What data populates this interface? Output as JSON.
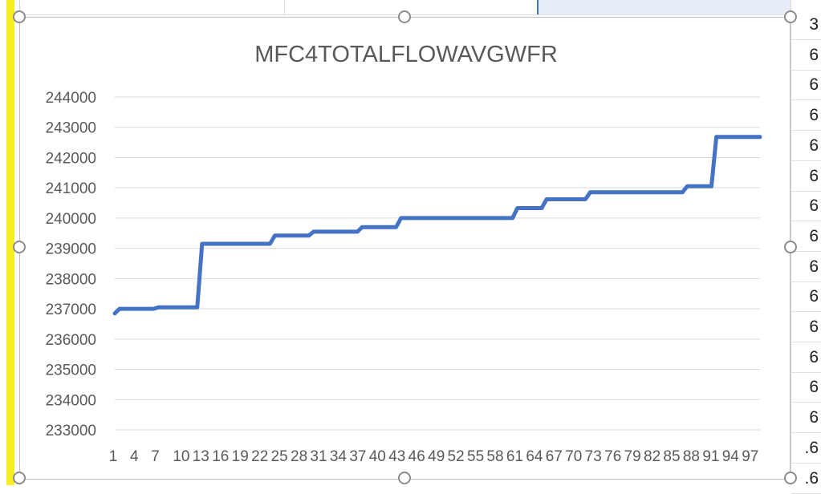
{
  "sheet": {
    "right_cells": [
      "3",
      "6",
      "6",
      "6",
      "6",
      "6",
      "6",
      "6",
      "6",
      "6",
      "6",
      "6",
      "6",
      "6",
      ".6",
      ".6"
    ]
  },
  "chart_data": {
    "type": "line",
    "title": "MFC4TOTALFLOWAVGWFR",
    "xlabel": "",
    "ylabel": "",
    "ylim": [
      233000,
      244000
    ],
    "y_ticks": [
      244000,
      243000,
      242000,
      241000,
      240000,
      239000,
      238000,
      237000,
      236000,
      235000,
      234000,
      233000
    ],
    "x_tick_labels": [
      "1",
      "4",
      "7",
      "10",
      "13",
      "16",
      "19",
      "22",
      "25",
      "28",
      "31",
      "34",
      "37",
      "40",
      "43",
      "46",
      "49",
      "52",
      "55",
      "58",
      "61",
      "64",
      "67",
      "70",
      "73",
      "76",
      "79",
      "82",
      "85",
      "88",
      "91",
      "94",
      "97"
    ],
    "grid": true,
    "legend": "none",
    "line_color": "#4472c4",
    "series": [
      {
        "values": [
          236850,
          237000,
          237000,
          237000,
          237000,
          237000,
          237000,
          237000,
          237000,
          237050,
          237050,
          237050,
          237050,
          237050,
          237050,
          237050,
          237050,
          237050,
          239150,
          239150,
          239150,
          239150,
          239150,
          239150,
          239150,
          239150,
          239150,
          239150,
          239150,
          239150,
          239150,
          239150,
          239150,
          239420,
          239420,
          239420,
          239420,
          239420,
          239420,
          239420,
          239420,
          239550,
          239550,
          239550,
          239550,
          239550,
          239550,
          239550,
          239550,
          239550,
          239550,
          239700,
          239700,
          239700,
          239700,
          239700,
          239700,
          239700,
          239700,
          240000,
          240000,
          240000,
          240000,
          240000,
          240000,
          240000,
          240000,
          240000,
          240000,
          240000,
          240000,
          240000,
          240000,
          240000,
          240000,
          240000,
          240000,
          240000,
          240000,
          240000,
          240000,
          240000,
          240000,
          240330,
          240330,
          240330,
          240330,
          240330,
          240330,
          240620,
          240620,
          240620,
          240620,
          240620,
          240620,
          240620,
          240620,
          240620,
          240850,
          240850,
          240850,
          240850,
          240850,
          240850,
          240850,
          240850,
          240850,
          240850,
          240850,
          240850,
          240850,
          240850,
          240850,
          240850,
          240850,
          240850,
          240850,
          240850,
          241050,
          241050,
          241050,
          241050,
          241050,
          241050,
          242680,
          242680,
          242680,
          242680,
          242680,
          242680,
          242680,
          242680,
          242680,
          242680
        ]
      }
    ]
  }
}
